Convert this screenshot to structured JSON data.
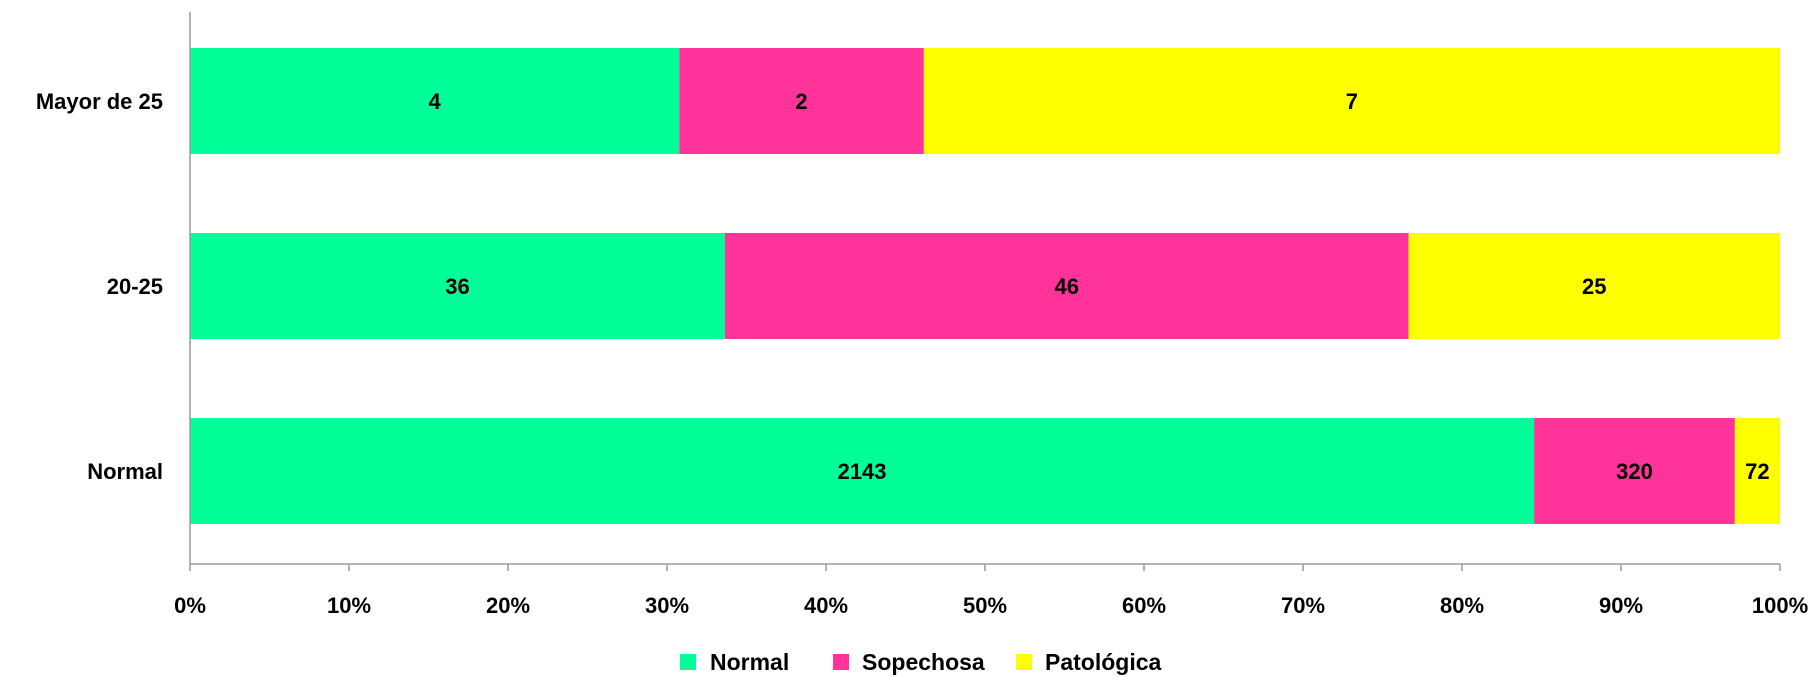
{
  "chart_data": {
    "type": "bar",
    "orientation": "horizontal",
    "stacked": "percent",
    "categories": [
      "Mayor de 25",
      "20-25",
      "Normal"
    ],
    "series": [
      {
        "name": "Normal",
        "color": "#00FF99",
        "values": [
          4,
          36,
          2143
        ]
      },
      {
        "name": "Sopechosa",
        "color": "#FF3399",
        "values": [
          2,
          46,
          320
        ]
      },
      {
        "name": "Patológica",
        "color": "#FFFF00",
        "values": [
          7,
          25,
          72
        ]
      }
    ],
    "x_ticks": [
      "0%",
      "10%",
      "20%",
      "30%",
      "40%",
      "50%",
      "60%",
      "70%",
      "80%",
      "90%",
      "100%"
    ],
    "xlim": [
      0,
      100
    ],
    "xlabel": "",
    "ylabel": "",
    "title": "",
    "legend_position": "bottom",
    "grid": false
  }
}
